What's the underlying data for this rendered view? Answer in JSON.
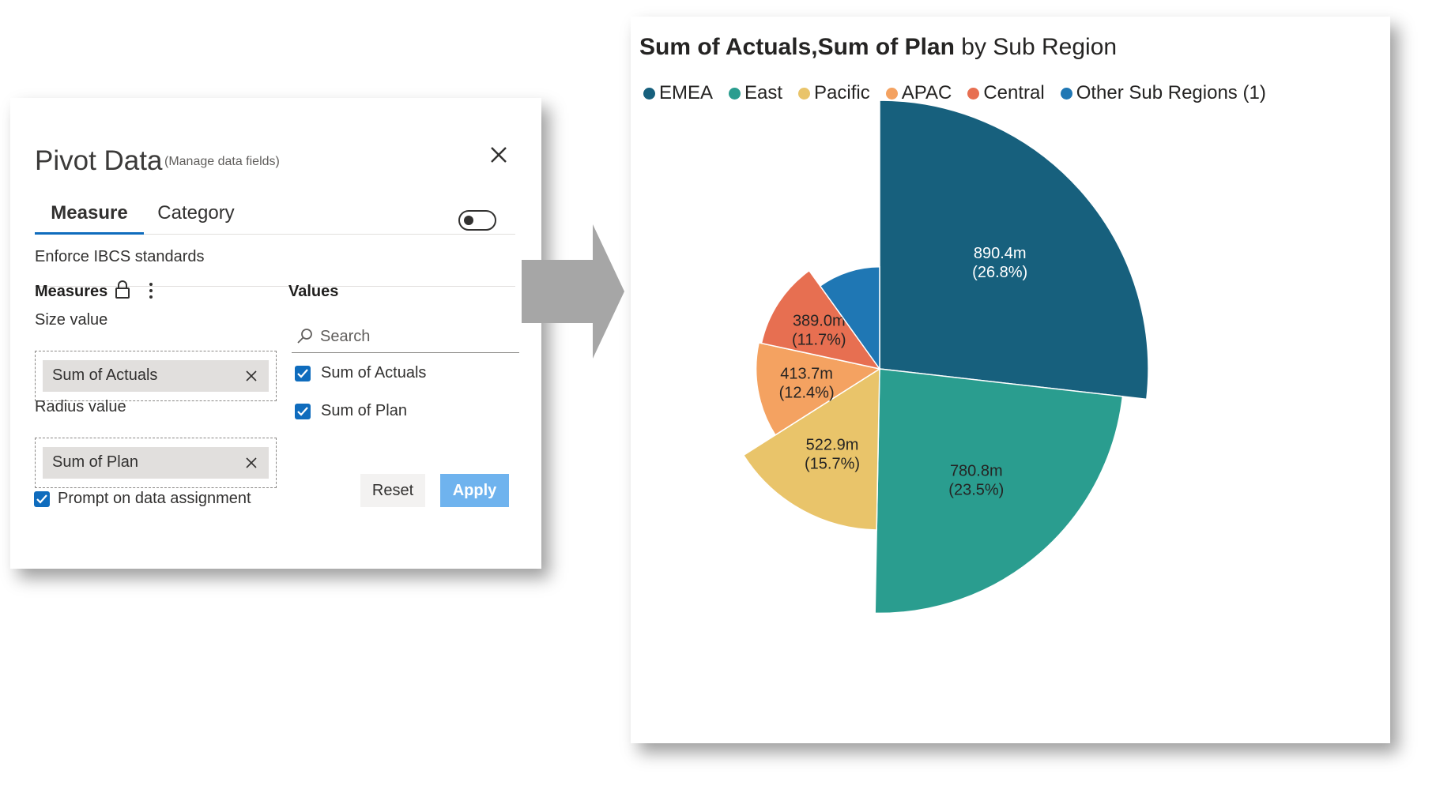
{
  "dialog": {
    "title": "Pivot Data",
    "subtitle": "(Manage data fields)",
    "close_icon": "close-icon",
    "tabs": [
      {
        "label": "Measure",
        "active": true
      },
      {
        "label": "Category",
        "active": false
      }
    ],
    "ibcs": {
      "label": "Enforce IBCS standards",
      "enabled": false
    },
    "measures": {
      "heading": "Measures",
      "lock_icon": "lock-icon",
      "more_icon": "more-vertical-icon",
      "size_label": "Size value",
      "size_chip": "Sum of Actuals",
      "radius_label": "Radius value",
      "radius_chip": "Sum of Plan"
    },
    "values": {
      "heading": "Values",
      "search_placeholder": "Search",
      "items": [
        {
          "label": "Sum of Actuals",
          "checked": true
        },
        {
          "label": "Sum of Plan",
          "checked": true
        }
      ]
    },
    "prompt": {
      "label": "Prompt on data assignment",
      "checked": true
    },
    "buttons": {
      "reset": "Reset",
      "apply": "Apply"
    }
  },
  "colors": {
    "accent": "#0f6cbd",
    "apply_button": "#6fb3ee"
  },
  "chart_data": {
    "type": "pie",
    "title_bold": "Sum of Actuals,Sum of Plan",
    "title_rest": " by Sub Region",
    "legend_position": "top-left",
    "series": [
      {
        "name": "EMEA",
        "value": 890.4,
        "percent": 26.8,
        "label": "890.4m",
        "percent_label": "(26.8%)",
        "color": "#17607d",
        "label_color": "#ffffff",
        "radius_value": 100
      },
      {
        "name": "East",
        "value": 780.8,
        "percent": 23.5,
        "label": "780.8m",
        "percent_label": "(23.5%)",
        "color": "#2a9d8f",
        "label_color": "#252423",
        "radius_value": 91
      },
      {
        "name": "Pacific",
        "value": 522.9,
        "percent": 15.7,
        "label": "522.9m",
        "percent_label": "(15.7%)",
        "color": "#e9c46a",
        "label_color": "#252423",
        "radius_value": 60
      },
      {
        "name": "APAC",
        "value": 413.7,
        "percent": 12.4,
        "label": "413.7m",
        "percent_label": "(12.4%)",
        "color": "#f4a261",
        "label_color": "#252423",
        "radius_value": 46
      },
      {
        "name": "Central",
        "value": 389.0,
        "percent": 11.7,
        "label": "389.0m",
        "percent_label": "(11.7%)",
        "color": "#e76f51",
        "label_color": "#252423",
        "radius_value": 45
      },
      {
        "name": "Other Sub Regions (1)",
        "value": null,
        "percent": 9.9,
        "label": "",
        "percent_label": "",
        "color": "#1f77b4",
        "label_color": "#252423",
        "radius_value": 38
      }
    ]
  }
}
